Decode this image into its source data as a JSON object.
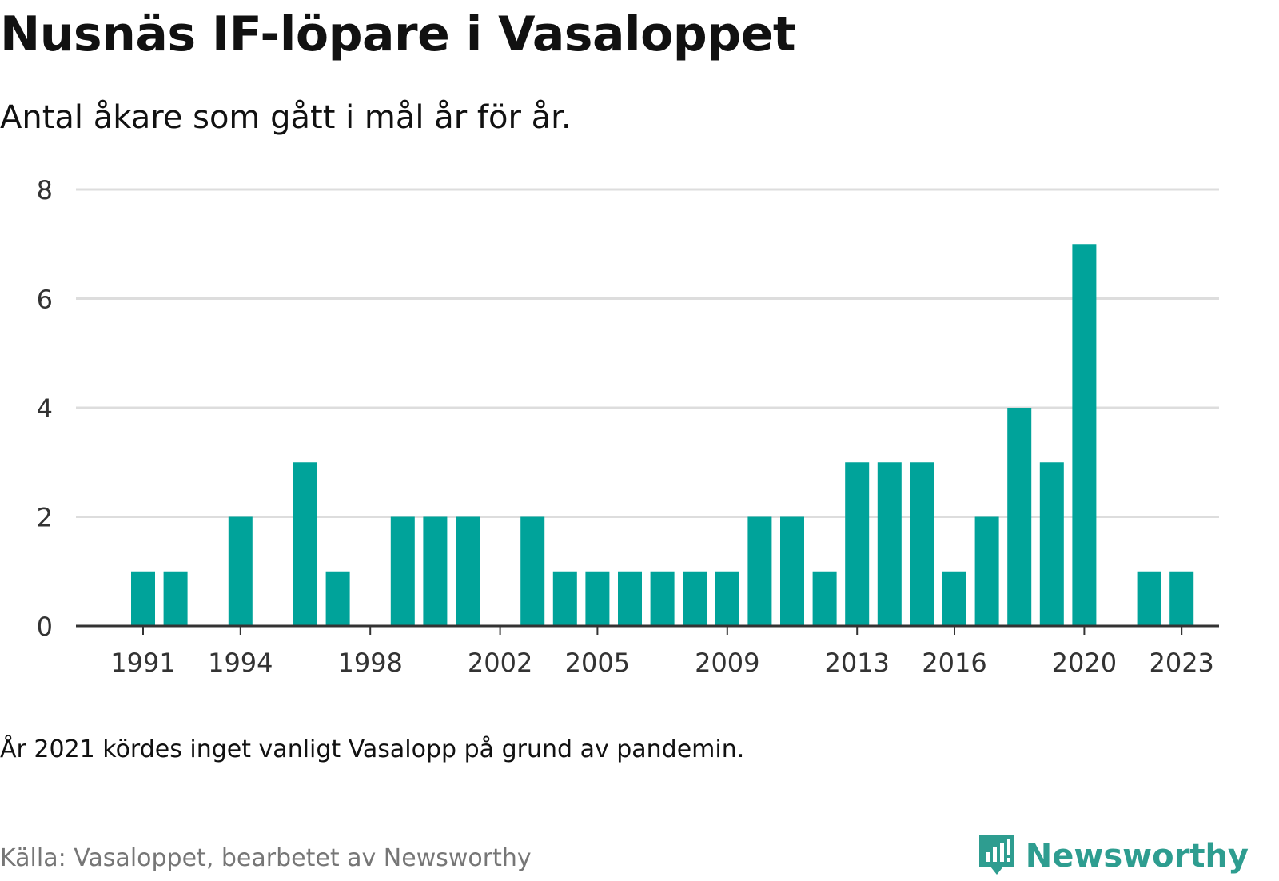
{
  "title": "Nusnäs IF-löpare i Vasaloppet",
  "subtitle": "Antal åkare som gått i mål år för år.",
  "note": "År 2021 kördes inget vanligt Vasalopp på grund av pandemin.",
  "source": "Källa: Vasaloppet, bearbetet av Newsworthy",
  "brand": {
    "name": "Newsworthy",
    "color": "#2e9d90"
  },
  "chart_data": {
    "type": "bar",
    "categories": [
      1991,
      1992,
      1993,
      1994,
      1995,
      1996,
      1997,
      1998,
      1999,
      2000,
      2001,
      2002,
      2003,
      2004,
      2005,
      2006,
      2007,
      2008,
      2009,
      2010,
      2011,
      2012,
      2013,
      2014,
      2015,
      2016,
      2017,
      2018,
      2019,
      2020,
      2021,
      2022,
      2023
    ],
    "values": [
      1,
      1,
      0,
      2,
      0,
      3,
      1,
      0,
      2,
      2,
      2,
      0,
      2,
      1,
      1,
      1,
      1,
      1,
      1,
      2,
      2,
      1,
      3,
      3,
      3,
      1,
      2,
      4,
      3,
      7,
      0,
      1,
      1
    ],
    "x_tick_labels": [
      "1991",
      "1994",
      "1998",
      "2002",
      "2005",
      "2009",
      "2013",
      "2016",
      "2020",
      "2023"
    ],
    "y_ticks": [
      0,
      2,
      4,
      6,
      8
    ],
    "ylim": [
      0,
      8
    ],
    "grid": true,
    "bar_color": "#00a39a",
    "grid_color": "#dddddd",
    "axis_color": "#333333"
  }
}
